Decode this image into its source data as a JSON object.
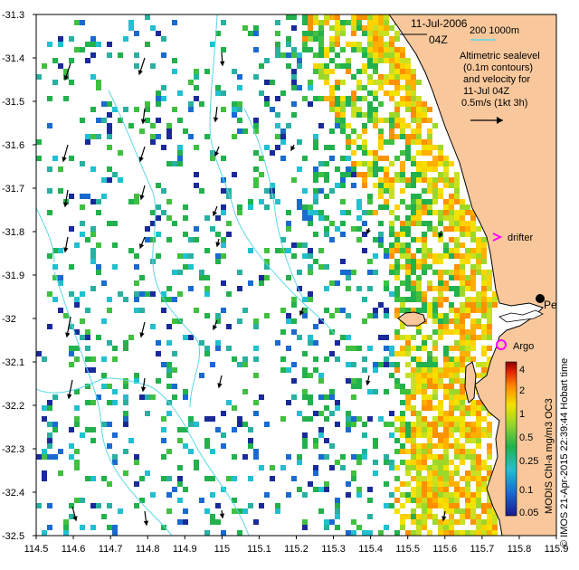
{
  "header": {
    "date": "11-Jul-2006",
    "time": "04Z",
    "scale_label": "200  1000m"
  },
  "notes": {
    "line1": "Altimetric sealevel",
    "line2": "(0.1m contours)",
    "line3": "and velocity for",
    "line4": "11-Jul 04Z",
    "line5": "0.5m/s (1kt 3h)"
  },
  "markers": {
    "drifter_label": "drifter",
    "argo_label": "Argo",
    "city_label": "Perth"
  },
  "colorbar": {
    "ticks": [
      "4",
      "2",
      "1",
      "0.5",
      "0.25",
      "0.1",
      "0.05"
    ],
    "title": "MODIS Chl-a mg/m3 OC3",
    "credit": "© IMOS 21-Apr-2015 22:39:44 Hobart time"
  },
  "axes": {
    "x_ticks": [
      "114.5",
      "114.6",
      "114.7",
      "114.8",
      "114.9",
      "115",
      "115.1",
      "115.2",
      "115.3",
      "115.4",
      "115.5",
      "115.6",
      "115.7",
      "115.8",
      "115.9"
    ],
    "y_ticks": [
      "-31.3",
      "-31.4",
      "-31.5",
      "-31.6",
      "-31.7",
      "-31.8",
      "-31.9",
      "-32",
      "-32.1",
      "-32.2",
      "-32.3",
      "-32.4",
      "-32.5"
    ],
    "xlim": [
      114.5,
      115.9
    ],
    "ylim": [
      -32.5,
      -31.3
    ]
  },
  "colors": {
    "land": "#f8c89c",
    "contour": "#5ad8e6",
    "chl_low": "#1a2a9a",
    "chl_mid": "#22b14c",
    "chl_high": "#ffd200",
    "drifter": "#ff00ff",
    "argo": "#ff00ff"
  }
}
